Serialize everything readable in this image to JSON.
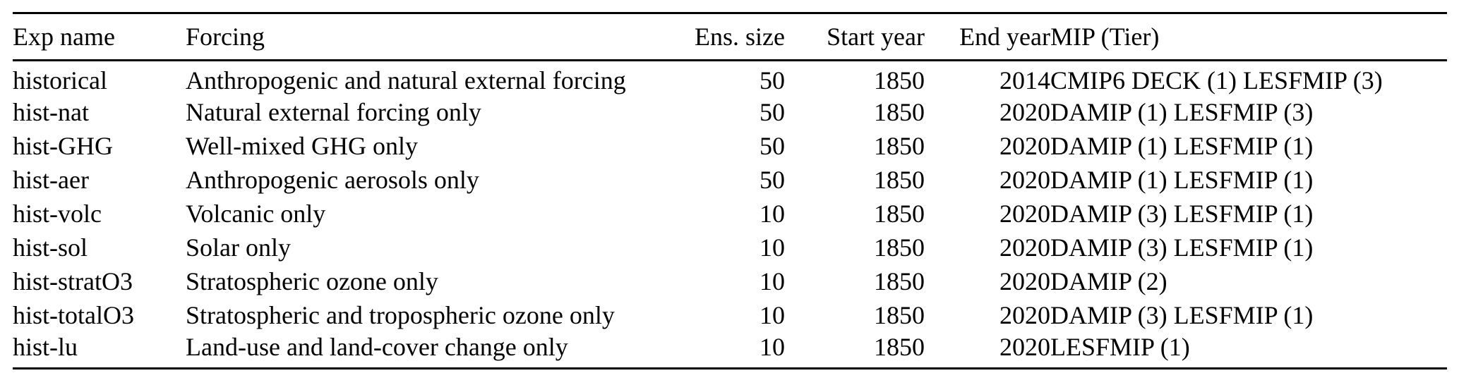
{
  "colors": {
    "background": "#ffffff",
    "text": "#000000",
    "rule": "#000000"
  },
  "table": {
    "name": "large-ensemble-single-forcing-experiments",
    "columns": [
      {
        "key": "exp-name",
        "label": "Exp name",
        "align": "left"
      },
      {
        "key": "forcing",
        "label": "Forcing",
        "align": "left"
      },
      {
        "key": "ens-size",
        "label": "Ens. size",
        "align": "right"
      },
      {
        "key": "start-year",
        "label": "Start year",
        "align": "right"
      },
      {
        "key": "end-year",
        "label": "End year",
        "align": "right"
      },
      {
        "key": "mip-tier",
        "label": "MIP (Tier)",
        "align": "left"
      }
    ],
    "rows": [
      [
        "historical",
        "Anthropogenic and natural external forcing",
        "50",
        "1850",
        "2014",
        "CMIP6 DECK (1) LESFMIP (3)"
      ],
      [
        "hist-nat",
        "Natural external forcing only",
        "50",
        "1850",
        "2020",
        "DAMIP (1) LESFMIP (3)"
      ],
      [
        "hist-GHG",
        "Well-mixed GHG only",
        "50",
        "1850",
        "2020",
        "DAMIP (1) LESFMIP (1)"
      ],
      [
        "hist-aer",
        "Anthropogenic aerosols only",
        "50",
        "1850",
        "2020",
        "DAMIP (1) LESFMIP (1)"
      ],
      [
        "hist-volc",
        "Volcanic only",
        "10",
        "1850",
        "2020",
        "DAMIP (3) LESFMIP (1)"
      ],
      [
        "hist-sol",
        "Solar only",
        "10",
        "1850",
        "2020",
        "DAMIP (3) LESFMIP (1)"
      ],
      [
        "hist-stratO3",
        "Stratospheric ozone only",
        "10",
        "1850",
        "2020",
        "DAMIP (2)"
      ],
      [
        "hist-totalO3",
        "Stratospheric and tropospheric ozone only",
        "10",
        "1850",
        "2020",
        "DAMIP (3) LESFMIP (1)"
      ],
      [
        "hist-lu",
        "Land-use and land-cover change only",
        "10",
        "1850",
        "2020",
        "LESFMIP (1)"
      ]
    ]
  }
}
